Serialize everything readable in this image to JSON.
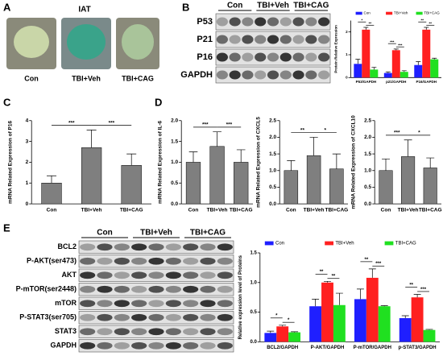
{
  "panels": {
    "labels": [
      "A",
      "B",
      "C",
      "D",
      "E"
    ]
  },
  "tissue": {
    "title": "IAT",
    "labels": [
      "Con",
      "TBI+Veh",
      "TBI+CAG"
    ]
  },
  "blot_b": {
    "columns": [
      "Con",
      "TBI+Veh",
      "TBI+CAG"
    ],
    "rows": [
      "P53",
      "P21",
      "P16",
      "GAPDH"
    ]
  },
  "blot_e": {
    "columns": [
      "Con",
      "TBI+Veh",
      "TBI+CAG"
    ],
    "rows": [
      "BCL2",
      "P-AKT(ser473)",
      "AKT",
      "P-mTOR(ser2448)",
      "mTOR",
      "P-STAT3(ser705)",
      "STAT3",
      "GAPDH"
    ]
  },
  "chart_data": [
    {
      "type": "bar",
      "ylabel": "Protein Relative Expression",
      "categories": [
        "P53/GAPDH",
        "p21/GAPDH",
        "P16/GAPDH"
      ],
      "series": [
        {
          "name": "Con",
          "color": "#1f1fff",
          "values": [
            0.6,
            0.2,
            0.55
          ],
          "errors": [
            0.2,
            0.05,
            0.15
          ]
        },
        {
          "name": "TBI+Veh",
          "color": "#ff2020",
          "values": [
            2.1,
            1.2,
            2.1
          ],
          "errors": [
            0.1,
            0.05,
            0.1
          ]
        },
        {
          "name": "TBI+CAG",
          "color": "#20e020",
          "values": [
            0.35,
            0.25,
            0.8
          ],
          "errors": [
            0.1,
            0.05,
            0.05
          ]
        }
      ],
      "ylim": [
        0,
        2.5
      ],
      "yticks": [
        0,
        1,
        2
      ],
      "annotations": [
        {
          "text": "*",
          "category": 0,
          "from": 0,
          "to": 1
        },
        {
          "text": "**",
          "category": 0,
          "from": 1,
          "to": 2
        },
        {
          "text": "***",
          "category": 1,
          "from": 0,
          "to": 1
        },
        {
          "text": "***",
          "category": 1,
          "from": 1,
          "to": 2
        },
        {
          "text": "**",
          "category": 2,
          "from": 0,
          "to": 1
        },
        {
          "text": "**",
          "category": 2,
          "from": 1,
          "to": 2
        }
      ]
    },
    {
      "type": "bar",
      "ylabel": "mRNA Related Expression of P16",
      "categories": [
        "Con",
        "TBI+Veh",
        "TBI+CAG"
      ],
      "color": "#7f7f7f",
      "values": [
        1.0,
        2.7,
        1.85
      ],
      "errors": [
        0.35,
        0.85,
        0.55
      ],
      "ylim": [
        0,
        4
      ],
      "yticks": [
        0,
        1,
        2,
        3,
        4
      ],
      "annotations": [
        {
          "text": "***",
          "from": 0,
          "to": 1
        },
        {
          "text": "***",
          "from": 1,
          "to": 2
        }
      ]
    },
    {
      "type": "bar",
      "ylabel": "mRNA Related Expression of IL-6",
      "categories": [
        "Con",
        "TBI+Veh",
        "TBI+CAG"
      ],
      "color": "#7f7f7f",
      "values": [
        1.0,
        1.38,
        1.0
      ],
      "errors": [
        0.25,
        0.35,
        0.3
      ],
      "ylim": [
        0,
        2.0
      ],
      "yticks": [
        {
          "value": 0,
          "label": "0.0"
        },
        0.5,
        {
          "value": 1,
          "label": "1.0"
        },
        1.5,
        {
          "value": 2,
          "label": "2.0"
        }
      ],
      "annotations": [
        {
          "text": "***",
          "from": 0,
          "to": 1
        },
        {
          "text": "***",
          "from": 1,
          "to": 2
        }
      ]
    },
    {
      "type": "bar",
      "ylabel": "mRNA Related Expression of CXCL5",
      "categories": [
        "Con",
        "TBI+Veh",
        "TBI+CAG"
      ],
      "color": "#7f7f7f",
      "values": [
        1.0,
        1.45,
        1.05
      ],
      "errors": [
        0.3,
        0.55,
        0.45
      ],
      "ylim": [
        0,
        2.5
      ],
      "yticks": [
        {
          "value": 0,
          "label": "0.0"
        },
        0.5,
        {
          "value": 1,
          "label": "1.0"
        },
        1.5,
        {
          "value": 2,
          "label": "2.0"
        },
        2.5
      ],
      "annotations": [
        {
          "text": "**",
          "from": 0,
          "to": 1
        },
        {
          "text": "*",
          "from": 1,
          "to": 2
        }
      ]
    },
    {
      "type": "bar",
      "ylabel": "mRNA Related Expression of CXCL10",
      "categories": [
        "Con",
        "TBI+Veh",
        "TBI+CAG"
      ],
      "color": "#7f7f7f",
      "values": [
        1.0,
        1.42,
        1.08
      ],
      "errors": [
        0.35,
        0.5,
        0.3
      ],
      "ylim": [
        0,
        2.5
      ],
      "yticks": [
        {
          "value": 0,
          "label": "0.0"
        },
        0.5,
        {
          "value": 1,
          "label": "1.0"
        },
        1.5,
        {
          "value": 2,
          "label": "2.0"
        },
        2.5
      ],
      "annotations": [
        {
          "text": "***",
          "from": 0,
          "to": 1
        },
        {
          "text": "*",
          "from": 1,
          "to": 2
        }
      ]
    },
    {
      "type": "bar",
      "ylabel": "Relative expression level of Proteins",
      "categories": [
        "BCL2/GAPDH",
        "P-AKT/GAPDH",
        "P-mTOR/GAPDH",
        "p-STAT3/GAPDH"
      ],
      "series": [
        {
          "name": "Con",
          "color": "#1f1fff",
          "values": [
            0.15,
            0.6,
            0.72,
            0.4
          ],
          "errors": [
            0.03,
            0.12,
            0.17,
            0.04
          ]
        },
        {
          "name": "TBI+Veh",
          "color": "#ff2020",
          "values": [
            0.26,
            1.0,
            1.08,
            0.75
          ],
          "errors": [
            0.02,
            0.02,
            0.15,
            0.05
          ]
        },
        {
          "name": "TBI+CAG",
          "color": "#20e020",
          "values": [
            0.16,
            0.62,
            0.6,
            0.2
          ],
          "errors": [
            0.01,
            0.2,
            0.01,
            0.01
          ]
        }
      ],
      "ylim": [
        0,
        1.5
      ],
      "yticks": [
        {
          "value": 0,
          "label": "0.0"
        },
        0.5,
        {
          "value": 1,
          "label": "1.0"
        },
        1.5
      ],
      "annotations": [
        {
          "text": "*",
          "category": 0,
          "from": 0,
          "to": 1
        },
        {
          "text": "*",
          "category": 0,
          "from": 1,
          "to": 2
        },
        {
          "text": "**",
          "category": 1,
          "from": 0,
          "to": 1
        },
        {
          "text": "**",
          "category": 1,
          "from": 1,
          "to": 2
        },
        {
          "text": "**",
          "category": 2,
          "from": 0,
          "to": 1
        },
        {
          "text": "***",
          "category": 2,
          "from": 1,
          "to": 2
        },
        {
          "text": "**",
          "category": 3,
          "from": 0,
          "to": 1
        },
        {
          "text": "***",
          "category": 3,
          "from": 1,
          "to": 2
        }
      ]
    }
  ]
}
